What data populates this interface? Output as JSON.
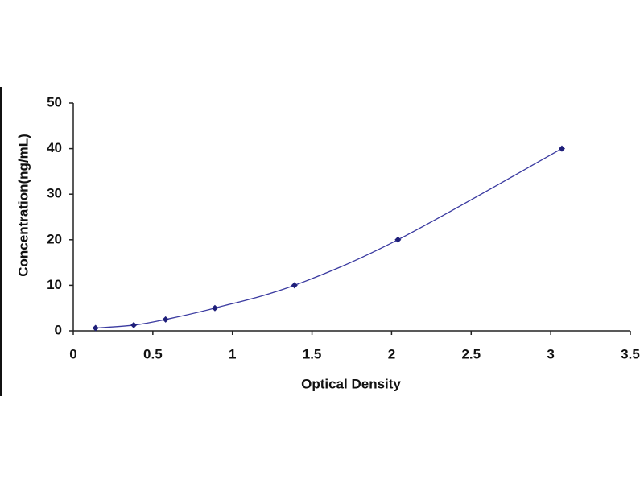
{
  "chart_data": {
    "type": "scatter",
    "x_label": "Optical Density",
    "y_label": "Concentration(ng/mL)",
    "x": [
      0.14,
      0.38,
      0.58,
      0.89,
      1.39,
      2.04,
      3.07
    ],
    "values": [
      0.625,
      1.25,
      2.5,
      5,
      10,
      20,
      40
    ],
    "color": "#1f1f7a",
    "line_color": "#3a3aa0",
    "xlim": [
      0,
      3.5
    ],
    "xticks": [
      0,
      0.5,
      1,
      1.5,
      2,
      2.5,
      3,
      3.5
    ],
    "ylim": [
      0,
      50
    ],
    "yticks": [
      0,
      10,
      20,
      30,
      40,
      50
    ],
    "grid": false
  }
}
